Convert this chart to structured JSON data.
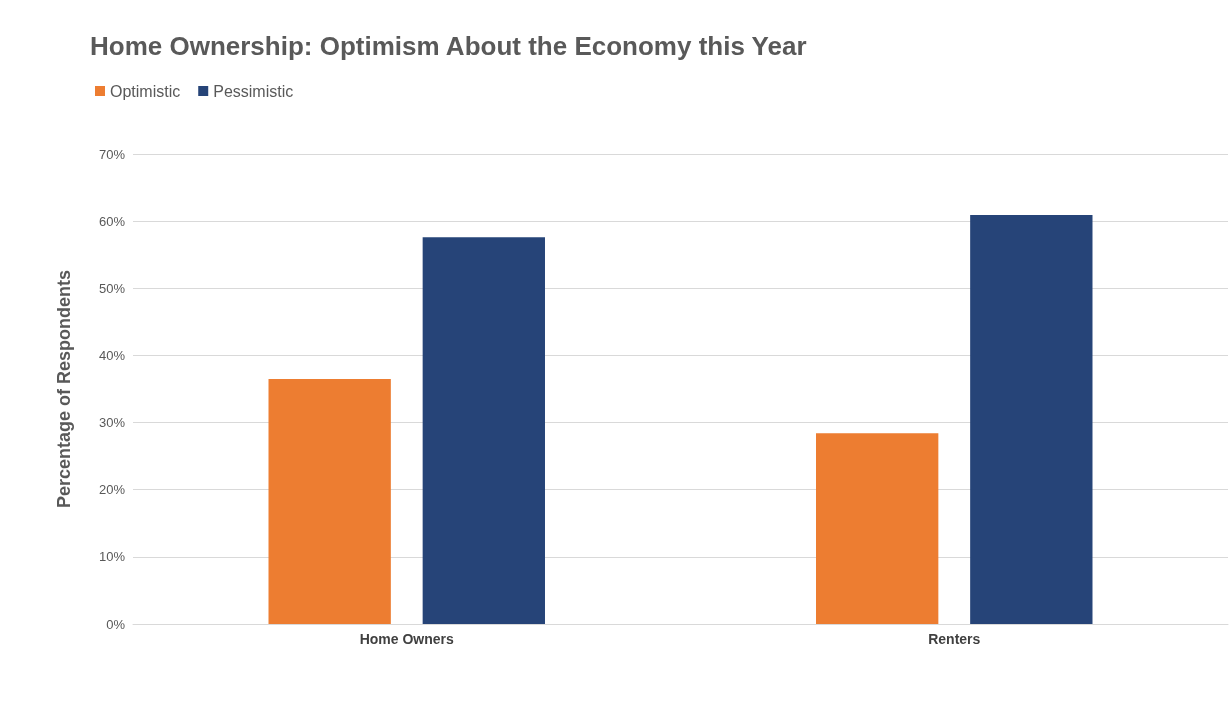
{
  "chart_data": {
    "type": "bar",
    "title": "Home Ownership: Optimism About the Economy this Year",
    "ylabel": "Percentage of Respondents",
    "categories": [
      "Home Owners",
      "Renters"
    ],
    "series": [
      {
        "name": "Optimistic",
        "color": "#ed7d31",
        "values": [
          36.5,
          28.4
        ]
      },
      {
        "name": "Pessimistic",
        "color": "#264478",
        "values": [
          57.6,
          60.9
        ]
      }
    ],
    "ylim": [
      0,
      70
    ],
    "yticks": [
      {
        "value": 0,
        "label": "0%"
      },
      {
        "value": 10,
        "label": "10%"
      },
      {
        "value": 20,
        "label": "20%"
      },
      {
        "value": 30,
        "label": "30%"
      },
      {
        "value": 40,
        "label": "40%"
      },
      {
        "value": 50,
        "label": "50%"
      },
      {
        "value": 60,
        "label": "60%"
      },
      {
        "value": 70,
        "label": "70%"
      }
    ],
    "grid": "y",
    "legend": "top left"
  }
}
